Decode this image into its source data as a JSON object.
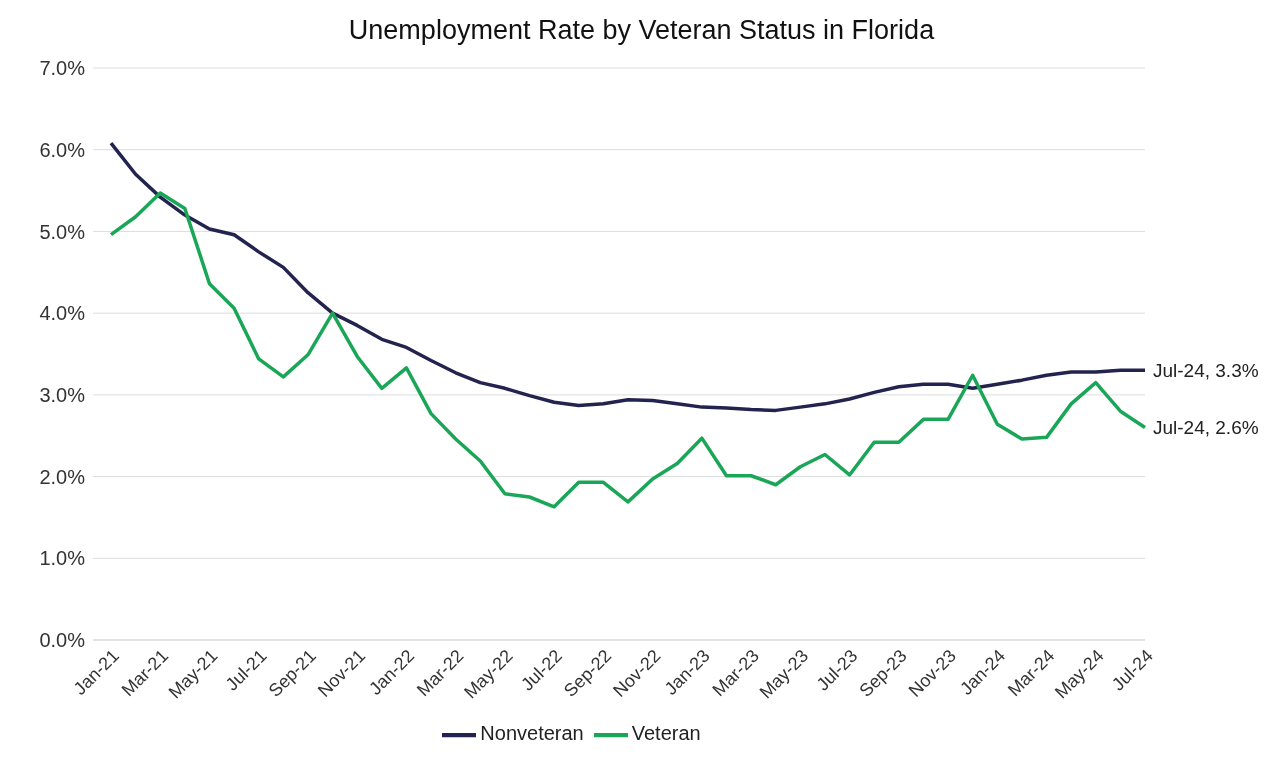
{
  "chart_data": {
    "type": "line",
    "title": "Unemployment Rate by Veteran Status in Florida",
    "categories": [
      "Jan-21",
      null,
      "Mar-21",
      null,
      "May-21",
      null,
      "Jul-21",
      null,
      "Sep-21",
      null,
      "Nov-21",
      null,
      "Jan-22",
      null,
      "Mar-22",
      null,
      "May-22",
      null,
      "Jul-22",
      null,
      "Sep-22",
      null,
      "Nov-22",
      null,
      "Jan-23",
      null,
      "Mar-23",
      null,
      "May-23",
      null,
      "Jul-23",
      null,
      "Sep-23",
      null,
      "Nov-23",
      null,
      "Jan-24",
      null,
      "Mar-24",
      null,
      "May-24",
      null,
      "Jul-24"
    ],
    "series": [
      {
        "name": "Nonveteran",
        "color": "#23234f",
        "values": [
          6.08,
          5.7,
          5.42,
          5.2,
          5.03,
          4.96,
          4.75,
          4.56,
          4.25,
          4.0,
          3.85,
          3.68,
          3.58,
          3.42,
          3.27,
          3.15,
          3.08,
          2.99,
          2.91,
          2.87,
          2.89,
          2.94,
          2.93,
          2.89,
          2.85,
          2.84,
          2.82,
          2.81,
          2.85,
          2.89,
          2.95,
          3.03,
          3.1,
          3.13,
          3.13,
          3.08,
          3.13,
          3.18,
          3.24,
          3.28,
          3.28,
          3.3,
          3.3
        ]
      },
      {
        "name": "Veteran",
        "color": "#1aa657",
        "values": [
          4.96,
          5.18,
          5.47,
          5.28,
          4.36,
          4.06,
          3.44,
          3.22,
          3.49,
          4.0,
          3.47,
          3.08,
          3.33,
          2.77,
          2.46,
          2.19,
          1.79,
          1.75,
          1.63,
          1.93,
          1.93,
          1.69,
          1.97,
          2.16,
          2.47,
          2.01,
          2.01,
          1.9,
          2.12,
          2.27,
          2.02,
          2.42,
          2.42,
          2.7,
          2.7,
          3.24,
          2.64,
          2.46,
          2.48,
          2.89,
          3.15,
          2.8,
          2.6
        ]
      }
    ],
    "ylim": [
      0,
      7
    ],
    "yticks": [
      {
        "value": 0,
        "label": "0.0%"
      },
      {
        "value": 1,
        "label": "1.0%"
      },
      {
        "value": 2,
        "label": "2.0%"
      },
      {
        "value": 3,
        "label": "3.0%"
      },
      {
        "value": 4,
        "label": "4.0%"
      },
      {
        "value": 5,
        "label": "5.0%"
      },
      {
        "value": 6,
        "label": "6.0%"
      },
      {
        "value": 7,
        "label": "7.0%"
      }
    ],
    "annotations": [
      "Jul-24, 3.3%",
      "Jul-24, 2.6%"
    ],
    "grid": "y",
    "legend": "bottom",
    "marker": "none",
    "line_style": "solid"
  }
}
